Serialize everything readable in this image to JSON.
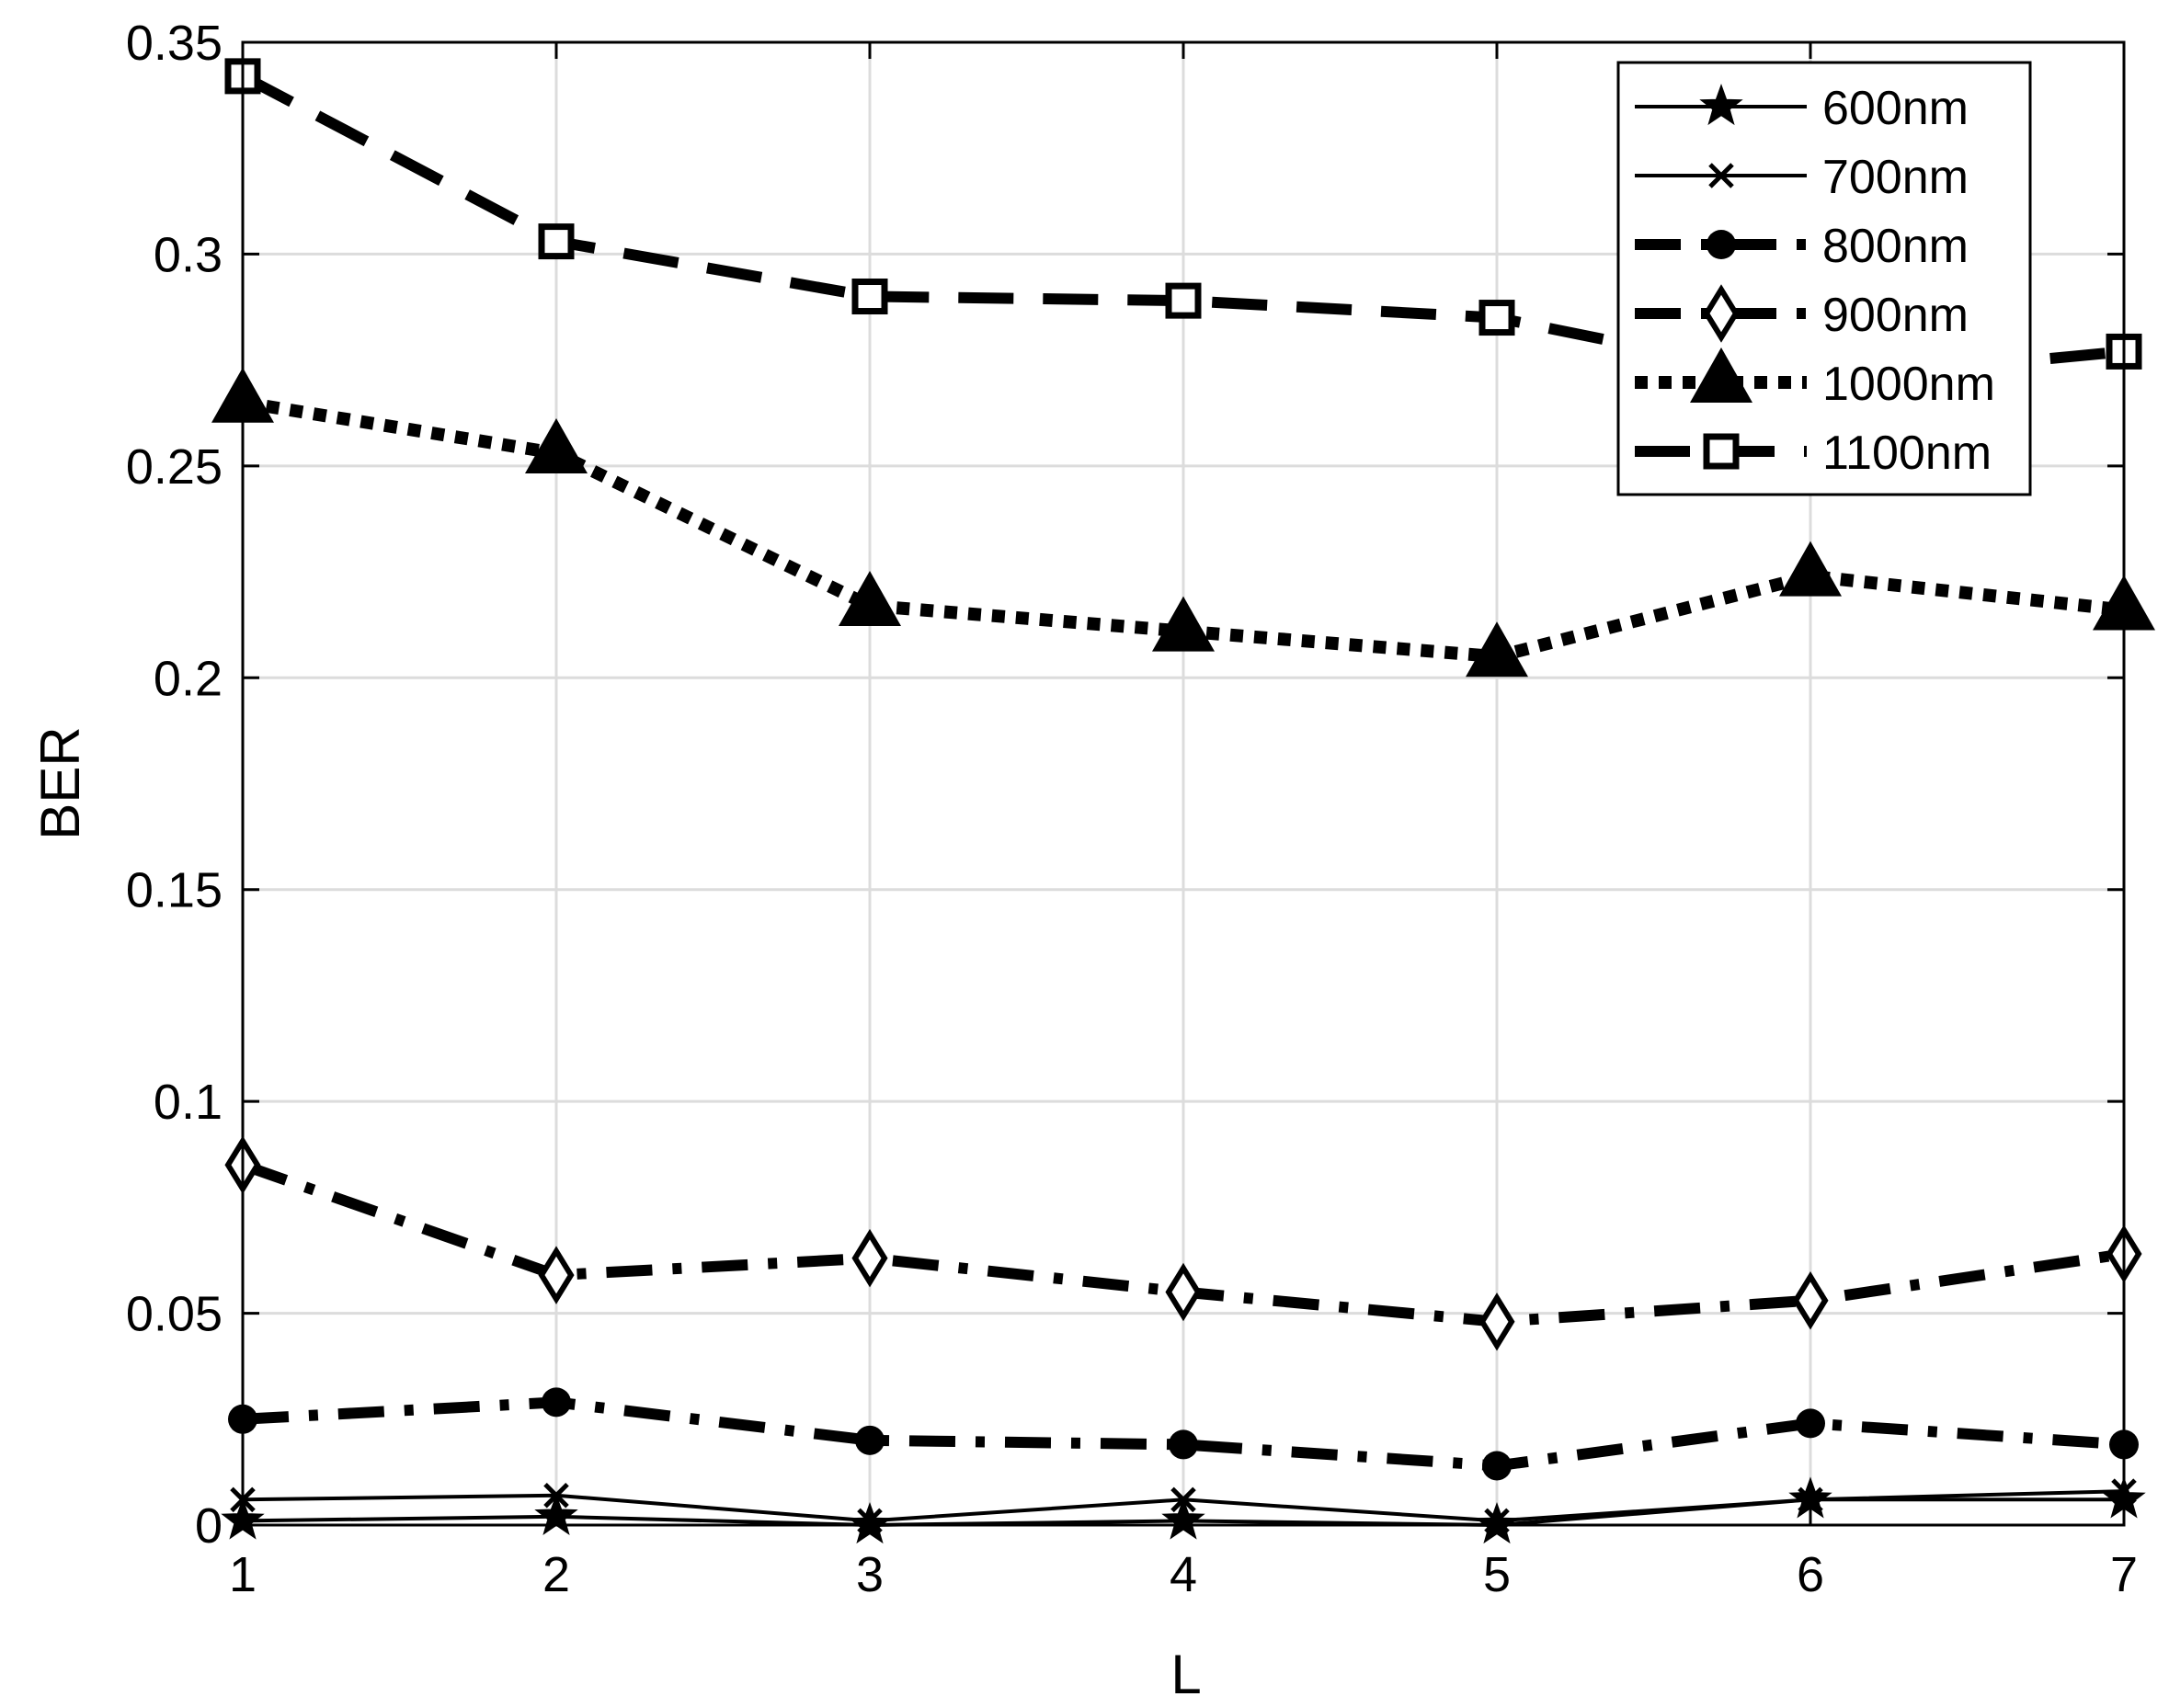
{
  "chart_data": {
    "type": "line",
    "title": "",
    "xlabel": "L",
    "ylabel": "BER",
    "xlim": [
      1,
      7
    ],
    "ylim": [
      0,
      0.35
    ],
    "x": [
      1,
      2,
      3,
      4,
      5,
      6,
      7
    ],
    "xticks": [
      "1",
      "2",
      "3",
      "4",
      "5",
      "6",
      "7"
    ],
    "yticks": [
      {
        "value": 0,
        "label": "0"
      },
      {
        "value": 0.05,
        "label": "0.05"
      },
      {
        "value": 0.1,
        "label": "0.1"
      },
      {
        "value": 0.15,
        "label": "0.15"
      },
      {
        "value": 0.2,
        "label": "0.2"
      },
      {
        "value": 0.25,
        "label": "0.25"
      },
      {
        "value": 0.3,
        "label": "0.3"
      },
      {
        "value": 0.35,
        "label": "0.35"
      }
    ],
    "grid": true,
    "legend_position": "top-right",
    "color": "#000000",
    "series": [
      {
        "name": "600nm",
        "marker": "star",
        "line": "solid",
        "values": [
          0.001,
          0.002,
          0.0,
          0.001,
          0.0,
          0.006,
          0.006
        ]
      },
      {
        "name": "700nm",
        "marker": "x",
        "line": "solid",
        "values": [
          0.006,
          0.007,
          0.001,
          0.006,
          0.001,
          0.006,
          0.008
        ]
      },
      {
        "name": "800nm",
        "marker": "circle",
        "line": "dashdot",
        "values": [
          0.025,
          0.029,
          0.02,
          0.019,
          0.014,
          0.024,
          0.019
        ]
      },
      {
        "name": "900nm",
        "marker": "diamond",
        "line": "dashdot",
        "values": [
          0.085,
          0.059,
          0.063,
          0.055,
          0.048,
          0.053,
          0.064
        ]
      },
      {
        "name": "1000nm",
        "marker": "triangle",
        "line": "dotted",
        "values": [
          0.265,
          0.253,
          0.217,
          0.211,
          0.205,
          0.224,
          0.216
        ]
      },
      {
        "name": "1100nm",
        "marker": "square",
        "line": "dashed",
        "values": [
          0.342,
          0.303,
          0.29,
          0.289,
          0.285,
          0.27,
          0.277
        ]
      }
    ]
  }
}
